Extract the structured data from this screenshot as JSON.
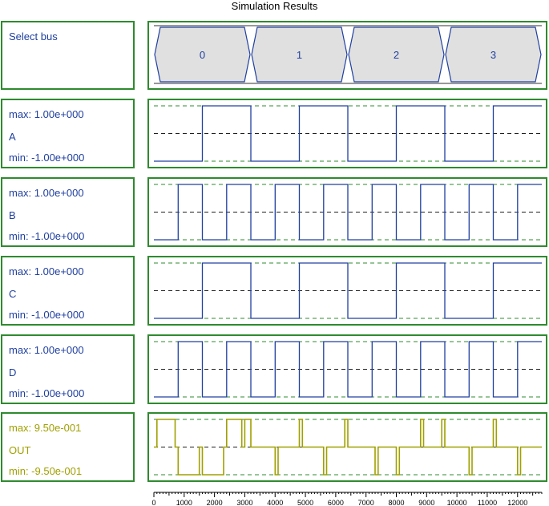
{
  "title": "Simulation Results",
  "colors": {
    "frame": "#2e8b2e",
    "signal": "#2040a0",
    "output": "#a0a000",
    "dashed_limit": "#2e8b2e",
    "dashed_mid": "#202020",
    "bus_fill": "#e0e0e0"
  },
  "bus": {
    "label": "Select bus",
    "values": [
      "0",
      "1",
      "2",
      "3"
    ]
  },
  "signals": [
    {
      "name": "A",
      "max": "max: 1.00e+000",
      "min": "min: -1.00e+000"
    },
    {
      "name": "B",
      "max": "max: 1.00e+000",
      "min": "min: -1.00e+000"
    },
    {
      "name": "C",
      "max": "max: 1.00e+000",
      "min": "min: -1.00e+000"
    },
    {
      "name": "D",
      "max": "max: 1.00e+000",
      "min": "min: -1.00e+000"
    },
    {
      "name": "OUT",
      "max": "max: 9.50e-001",
      "min": "min: -9.50e-001"
    }
  ],
  "chart_data": {
    "type": "line",
    "title": "Simulation Results",
    "xlim": [
      0,
      12800
    ],
    "ticks": [
      0,
      1000,
      2000,
      3000,
      4000,
      5000,
      6000,
      7000,
      8000,
      9000,
      10000,
      11000,
      12000
    ],
    "tick_labels": [
      "0",
      "1000",
      "2000",
      "3000",
      "4000",
      "5000",
      "6000",
      "7000",
      "8000",
      "9000",
      "10000",
      "11000",
      "12000"
    ],
    "bus_segments": [
      {
        "value": "0",
        "start": 0,
        "end": 3200
      },
      {
        "value": "1",
        "start": 3200,
        "end": 6400
      },
      {
        "value": "2",
        "start": 6400,
        "end": 9600
      },
      {
        "value": "3",
        "start": 9600,
        "end": 12800
      }
    ],
    "series": [
      {
        "name": "A",
        "ylim": [
          -1,
          1
        ],
        "x": [
          0,
          1600,
          1600,
          3200,
          3200,
          4800,
          4800,
          6400,
          6400,
          8000,
          8000,
          9600,
          9600,
          11200,
          11200,
          12800
        ],
        "y": [
          -1,
          -1,
          1,
          1,
          -1,
          -1,
          1,
          1,
          -1,
          -1,
          1,
          1,
          -1,
          -1,
          1,
          1
        ]
      },
      {
        "name": "B",
        "ylim": [
          -1,
          1
        ],
        "x": [
          0,
          800,
          800,
          1600,
          1600,
          2400,
          2400,
          3200,
          3200,
          4000,
          4000,
          4800,
          4800,
          5600,
          5600,
          6400,
          6400,
          7200,
          7200,
          8000,
          8000,
          8800,
          8800,
          9600,
          9600,
          10400,
          10400,
          11200,
          11200,
          12000,
          12000,
          12800
        ],
        "y": [
          -1,
          -1,
          1,
          1,
          -1,
          -1,
          1,
          1,
          -1,
          -1,
          1,
          1,
          -1,
          -1,
          1,
          1,
          -1,
          -1,
          1,
          1,
          -1,
          -1,
          1,
          1,
          -1,
          -1,
          1,
          1,
          -1,
          -1,
          1,
          1
        ]
      },
      {
        "name": "C",
        "ylim": [
          -1,
          1
        ],
        "x": [
          0,
          1600,
          1600,
          3200,
          3200,
          4800,
          4800,
          6400,
          6400,
          8000,
          8000,
          9600,
          9600,
          11200,
          11200,
          12800
        ],
        "y": [
          -1,
          -1,
          1,
          1,
          -1,
          -1,
          1,
          1,
          -1,
          -1,
          1,
          1,
          -1,
          -1,
          1,
          1
        ]
      },
      {
        "name": "D",
        "ylim": [
          -1,
          1
        ],
        "x": [
          0,
          800,
          800,
          1600,
          1600,
          2400,
          2400,
          3200,
          3200,
          4000,
          4000,
          4800,
          4800,
          5600,
          5600,
          6400,
          6400,
          7200,
          7200,
          8000,
          8000,
          8800,
          8800,
          9600,
          9600,
          10400,
          10400,
          11200,
          11200,
          12000,
          12000,
          12800
        ],
        "y": [
          -1,
          -1,
          1,
          1,
          -1,
          -1,
          1,
          1,
          -1,
          -1,
          1,
          1,
          -1,
          -1,
          1,
          1,
          -1,
          -1,
          1,
          1,
          -1,
          -1,
          1,
          1,
          -1,
          -1,
          1,
          1,
          -1,
          -1,
          1,
          1
        ]
      },
      {
        "name": "OUT",
        "ylim": [
          -0.95,
          0.95
        ],
        "x": [
          0,
          100,
          100,
          700,
          700,
          800,
          800,
          1500,
          1500,
          1600,
          1600,
          2300,
          2300,
          2400,
          2400,
          2900,
          2900,
          3000,
          3000,
          3200,
          3200,
          3300,
          3300,
          4000,
          4000,
          4100,
          4100,
          4800,
          4800,
          4900,
          4900,
          5600,
          5600,
          5700,
          5700,
          6300,
          6300,
          6400,
          6400,
          6500,
          6500,
          7300,
          7300,
          7400,
          7400,
          8000,
          8000,
          8100,
          8100,
          8800,
          8800,
          8900,
          8900,
          9500,
          9500,
          9600,
          9600,
          9700,
          9700,
          10400,
          10400,
          10500,
          10500,
          11200,
          11200,
          11300,
          11300,
          12000,
          12000,
          12100,
          12100,
          12800
        ],
        "y": [
          0,
          0,
          0.95,
          0.95,
          0,
          0,
          -0.95,
          -0.95,
          0,
          0,
          -0.95,
          -0.95,
          0,
          0,
          0.95,
          0.95,
          0,
          0,
          0.95,
          0.95,
          0,
          0,
          0,
          0,
          -0.95,
          -0.95,
          0,
          0,
          0.95,
          0.95,
          0,
          0,
          -0.95,
          -0.95,
          0,
          0,
          0.95,
          0.95,
          0,
          0,
          0,
          0,
          -0.95,
          -0.95,
          0,
          0,
          -0.95,
          -0.95,
          0,
          0,
          0.95,
          0.95,
          0,
          0,
          0.95,
          0.95,
          0,
          0,
          0,
          0,
          -0.95,
          -0.95,
          0,
          0,
          0.95,
          0.95,
          0,
          0,
          -0.95,
          -0.95,
          0,
          0
        ]
      }
    ]
  }
}
